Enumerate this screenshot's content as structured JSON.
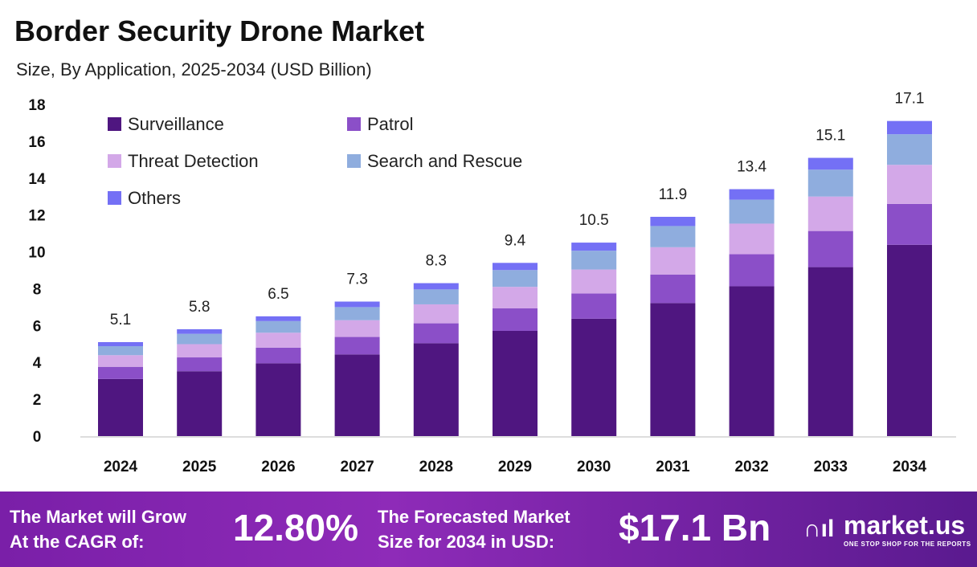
{
  "title": "Border Security Drone Market",
  "subtitle": "Size, By Application, 2025-2034 (USD Billion)",
  "chart_data": {
    "type": "bar",
    "stacked": true,
    "categories": [
      "2024",
      "2025",
      "2026",
      "2027",
      "2028",
      "2029",
      "2030",
      "2031",
      "2032",
      "2033",
      "2034"
    ],
    "totals": [
      "5.1",
      "5.8",
      "6.5",
      "7.3",
      "8.3",
      "9.4",
      "10.5",
      "11.9",
      "13.4",
      "15.1",
      "17.1"
    ],
    "ylim": [
      0,
      18
    ],
    "yticks": [
      0,
      2,
      4,
      6,
      8,
      10,
      12,
      14,
      16,
      18
    ],
    "grid": false,
    "legend": "top-left",
    "series": [
      {
        "name": "Surveillance",
        "color": "#4f1680",
        "values": [
          3.1,
          3.52,
          3.95,
          4.43,
          5.04,
          5.71,
          6.37,
          7.22,
          8.13,
          9.17,
          10.38
        ]
      },
      {
        "name": "Patrol",
        "color": "#8b4fc8",
        "values": [
          0.66,
          0.75,
          0.85,
          0.95,
          1.08,
          1.22,
          1.37,
          1.55,
          1.74,
          1.96,
          2.22
        ]
      },
      {
        "name": "Threat Detection",
        "color": "#d3a8e8",
        "values": [
          0.63,
          0.72,
          0.81,
          0.91,
          1.03,
          1.17,
          1.3,
          1.48,
          1.66,
          1.87,
          2.12
        ]
      },
      {
        "name": "Search and Rescue",
        "color": "#8fadde",
        "values": [
          0.49,
          0.56,
          0.63,
          0.71,
          0.81,
          0.91,
          1.02,
          1.15,
          1.3,
          1.46,
          1.66
        ]
      },
      {
        "name": "Others",
        "color": "#7470f5",
        "values": [
          0.22,
          0.25,
          0.26,
          0.3,
          0.34,
          0.39,
          0.44,
          0.5,
          0.57,
          0.64,
          0.72
        ]
      }
    ]
  },
  "footer": {
    "cagr_label_1": "The Market will Grow",
    "cagr_label_2": "At the CAGR of:",
    "cagr_value": "12.80%",
    "size_label_1": "The Forecasted Market",
    "size_label_2": "Size for 2034 in USD:",
    "size_value": "$17.1 Bn",
    "logo_text": "market.us",
    "logo_tagline": "ONE STOP SHOP FOR THE REPORTS"
  }
}
